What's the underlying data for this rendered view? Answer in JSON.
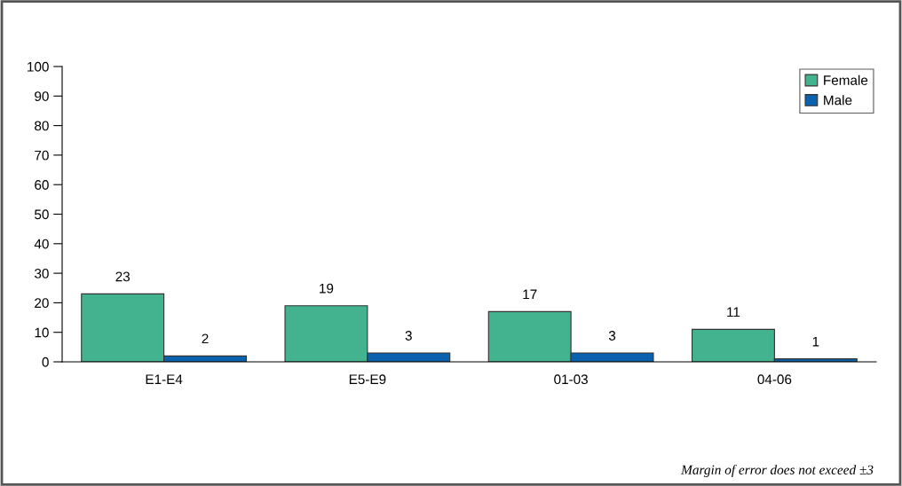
{
  "chart_data": {
    "type": "bar",
    "categories": [
      "E1-E4",
      "E5-E9",
      "01-03",
      "04-06"
    ],
    "series": [
      {
        "name": "Female",
        "color": "#43b38f",
        "values": [
          23,
          19,
          17,
          11
        ]
      },
      {
        "name": "Male",
        "color": "#0a62ae",
        "values": [
          2,
          3,
          3,
          1
        ]
      }
    ],
    "ylim": [
      0,
      100
    ],
    "yticks": [
      0,
      10,
      20,
      30,
      40,
      50,
      60,
      70,
      80,
      90,
      100
    ],
    "data_labels": true,
    "grid": false,
    "legend": "top right",
    "annotations": [
      "Margin of error does not exceed ±3"
    ]
  }
}
